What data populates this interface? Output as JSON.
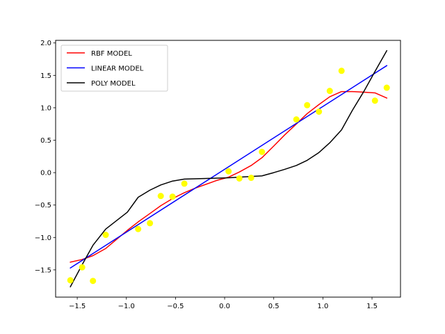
{
  "chart_data": {
    "type": "line+scatter",
    "title": "",
    "xlabel": "",
    "ylabel": "",
    "xlim": [
      -1.72,
      1.79
    ],
    "ylim": [
      -1.92,
      2.04
    ],
    "xticks": [
      -1.5,
      -1.0,
      -0.5,
      0.0,
      0.5,
      1.0,
      1.5
    ],
    "xtick_labels": [
      "−1.5",
      "−1.0",
      "−0.5",
      "0.0",
      "0.5",
      "1.0",
      "1.5"
    ],
    "yticks": [
      -1.5,
      -1.0,
      -0.5,
      0.0,
      0.5,
      1.0,
      1.5,
      2.0
    ],
    "ytick_labels": [
      "−1.5",
      "−1.0",
      "−0.5",
      "0.0",
      "0.5",
      "1.0",
      "1.5",
      "2.0"
    ],
    "grid": false,
    "legend_position": "top-left",
    "scatter": {
      "color": "#ffff00",
      "points": [
        [
          -1.57,
          -1.66
        ],
        [
          -1.45,
          -1.46
        ],
        [
          -1.34,
          -1.67
        ],
        [
          -1.21,
          -0.96
        ],
        [
          -0.88,
          -0.87
        ],
        [
          -0.76,
          -0.78
        ],
        [
          -0.65,
          -0.36
        ],
        [
          -0.53,
          -0.37
        ],
        [
          -0.41,
          -0.17
        ],
        [
          0.04,
          0.02
        ],
        [
          0.15,
          -0.09
        ],
        [
          0.27,
          -0.08
        ],
        [
          0.38,
          0.32
        ],
        [
          0.73,
          0.82
        ],
        [
          0.84,
          1.04
        ],
        [
          0.96,
          0.94
        ],
        [
          1.07,
          1.26
        ],
        [
          1.19,
          1.57
        ],
        [
          1.53,
          1.11
        ],
        [
          1.65,
          1.31
        ]
      ]
    },
    "series": [
      {
        "name": "RBF MODEL",
        "color": "#ff0000",
        "points": [
          [
            -1.57,
            -1.38
          ],
          [
            -1.45,
            -1.34
          ],
          [
            -1.34,
            -1.28
          ],
          [
            -1.21,
            -1.17
          ],
          [
            -1.1,
            -1.03
          ],
          [
            -0.99,
            -0.89
          ],
          [
            -0.88,
            -0.76
          ],
          [
            -0.76,
            -0.63
          ],
          [
            -0.65,
            -0.51
          ],
          [
            -0.53,
            -0.4
          ],
          [
            -0.41,
            -0.31
          ],
          [
            -0.3,
            -0.24
          ],
          [
            -0.19,
            -0.18
          ],
          [
            -0.08,
            -0.12
          ],
          [
            0.04,
            -0.07
          ],
          [
            0.15,
            0.01
          ],
          [
            0.27,
            0.11
          ],
          [
            0.38,
            0.23
          ],
          [
            0.5,
            0.41
          ],
          [
            0.61,
            0.58
          ],
          [
            0.73,
            0.75
          ],
          [
            0.84,
            0.91
          ],
          [
            0.96,
            1.05
          ],
          [
            1.07,
            1.17
          ],
          [
            1.19,
            1.25
          ],
          [
            1.3,
            1.25
          ],
          [
            1.42,
            1.24
          ],
          [
            1.53,
            1.23
          ],
          [
            1.65,
            1.15
          ]
        ]
      },
      {
        "name": "LINEAR MODEL",
        "color": "#0000ff",
        "points": [
          [
            -1.57,
            -1.47
          ],
          [
            1.65,
            1.65
          ]
        ]
      },
      {
        "name": "POLY MODEL",
        "color": "#000000",
        "points": [
          [
            -1.57,
            -1.76
          ],
          [
            -1.45,
            -1.42
          ],
          [
            -1.34,
            -1.12
          ],
          [
            -1.21,
            -0.87
          ],
          [
            -1.1,
            -0.74
          ],
          [
            -0.99,
            -0.61
          ],
          [
            -0.88,
            -0.38
          ],
          [
            -0.76,
            -0.27
          ],
          [
            -0.65,
            -0.19
          ],
          [
            -0.53,
            -0.13
          ],
          [
            -0.41,
            -0.1
          ],
          [
            -0.19,
            -0.09
          ],
          [
            0.04,
            -0.08
          ],
          [
            0.27,
            -0.06
          ],
          [
            0.38,
            -0.05
          ],
          [
            0.5,
            0.0
          ],
          [
            0.61,
            0.05
          ],
          [
            0.73,
            0.11
          ],
          [
            0.84,
            0.19
          ],
          [
            0.96,
            0.31
          ],
          [
            1.07,
            0.46
          ],
          [
            1.19,
            0.66
          ],
          [
            1.3,
            0.96
          ],
          [
            1.42,
            1.26
          ],
          [
            1.53,
            1.56
          ],
          [
            1.65,
            1.88
          ]
        ]
      }
    ]
  }
}
